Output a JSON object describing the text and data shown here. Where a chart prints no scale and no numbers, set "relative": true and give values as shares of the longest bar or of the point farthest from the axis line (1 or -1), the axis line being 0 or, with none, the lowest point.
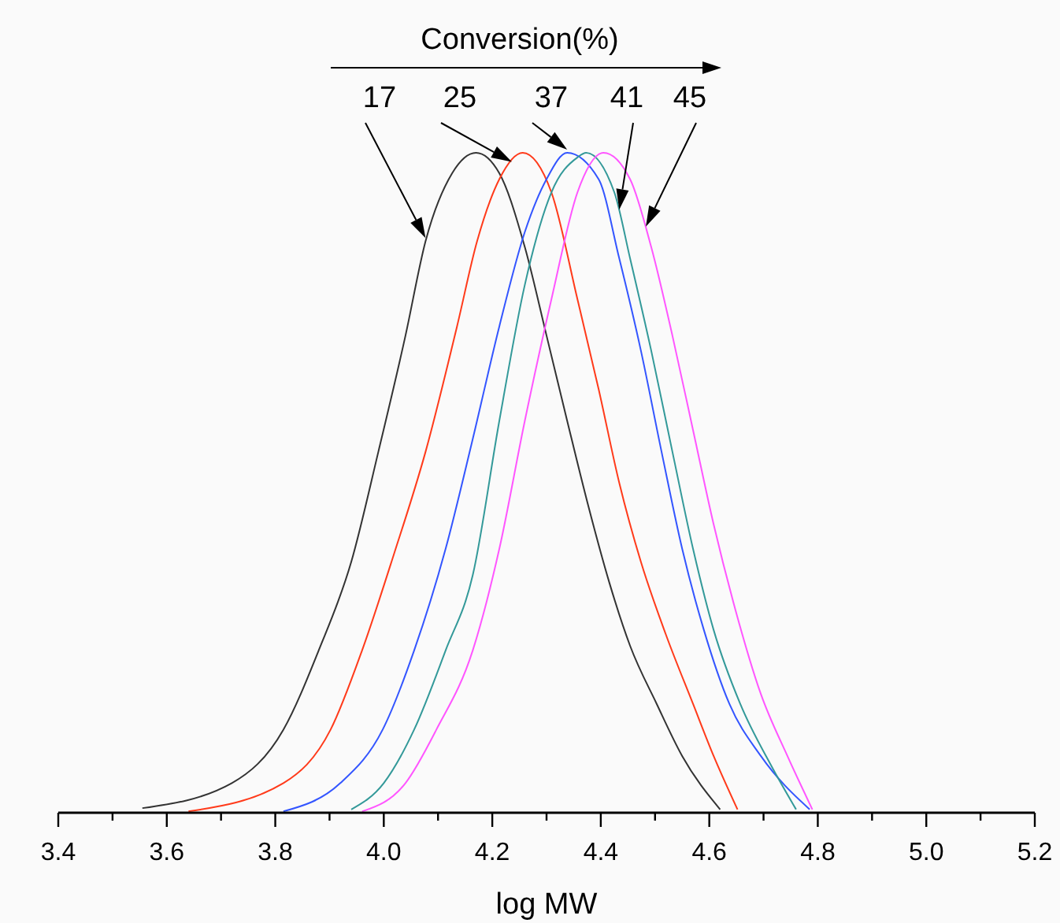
{
  "chart_data": {
    "type": "line",
    "relative": true,
    "legend_title": "Conversion(%)",
    "xlabel": "log MW",
    "grid": false,
    "line_style": "solid",
    "xlim": [
      3.4,
      5.2
    ],
    "xticks": [
      3.4,
      {
        "value": 3.5,
        "label": null
      },
      3.6,
      {
        "value": 3.7,
        "label": null
      },
      3.8,
      {
        "value": 3.9,
        "label": null
      },
      "4.0",
      {
        "value": 4.1,
        "label": null
      },
      4.2,
      {
        "value": 4.3,
        "label": null
      },
      4.4,
      {
        "value": 4.5,
        "label": null
      },
      4.6,
      {
        "value": 4.7,
        "label": null
      },
      4.8,
      {
        "value": 4.9,
        "label": null
      },
      "5.0",
      {
        "value": 5.1,
        "label": null
      },
      5.2
    ],
    "series": [
      {
        "name": "17",
        "color": "#333333",
        "x": [
          3.555,
          3.72,
          3.815,
          3.88,
          3.94,
          3.99,
          4.04,
          4.077,
          4.126,
          4.17,
          4.213,
          4.26,
          4.3,
          4.338,
          4.376,
          4.416,
          4.454,
          4.503,
          4.55,
          4.62
        ],
        "values": [
          0.007,
          0.045,
          0.126,
          0.246,
          0.38,
          0.547,
          0.723,
          0.866,
          0.969,
          1,
          0.969,
          0.857,
          0.723,
          0.594,
          0.468,
          0.348,
          0.253,
          0.165,
          0.086,
          0.005
        ]
      },
      {
        "name": "25",
        "color": "#ff3a1a",
        "x": [
          3.64,
          3.815,
          3.902,
          3.96,
          4.018,
          4.077,
          4.135,
          4.172,
          4.213,
          4.256,
          4.309,
          4.357,
          4.396,
          4.434,
          4.474,
          4.52,
          4.57,
          4.608,
          4.652
        ],
        "values": [
          0.002,
          0.045,
          0.126,
          0.246,
          0.39,
          0.547,
          0.737,
          0.866,
          0.96,
          1,
          0.94,
          0.778,
          0.642,
          0.5,
          0.38,
          0.27,
          0.165,
          0.086,
          0.005
        ]
      },
      {
        "name": "37",
        "color": "#3355ff",
        "x": [
          3.815,
          3.92,
          3.998,
          4.056,
          4.114,
          4.163,
          4.213,
          4.26,
          4.3,
          4.338,
          4.396,
          4.434,
          4.474,
          4.512,
          4.55,
          4.59,
          4.637,
          4.695,
          4.785
        ],
        "values": [
          0.002,
          0.045,
          0.126,
          0.246,
          0.4,
          0.563,
          0.737,
          0.88,
          0.96,
          1,
          0.96,
          0.84,
          0.7,
          0.547,
          0.4,
          0.277,
          0.165,
          0.086,
          0.005
        ]
      },
      {
        "name": "41",
        "color": "#339999",
        "x": [
          3.94,
          4.0,
          4.056,
          4.114,
          4.164,
          4.213,
          4.26,
          4.309,
          4.357,
          4.373,
          4.425,
          4.454,
          4.493,
          4.532,
          4.57,
          4.608,
          4.657,
          4.715,
          4.76
        ],
        "values": [
          0.005,
          0.045,
          0.126,
          0.246,
          0.36,
          0.594,
          0.8,
          0.94,
          0.993,
          1,
          0.94,
          0.84,
          0.7,
          0.547,
          0.4,
          0.277,
          0.165,
          0.07,
          0.005
        ]
      },
      {
        "name": "45",
        "color": "#ff55ff",
        "x": [
          3.96,
          4.04,
          4.097,
          4.164,
          4.213,
          4.26,
          4.309,
          4.357,
          4.405,
          4.454,
          4.493,
          4.532,
          4.57,
          4.608,
          4.648,
          4.695,
          4.744,
          4.79
        ],
        "values": [
          0.002,
          0.045,
          0.126,
          0.246,
          0.4,
          0.594,
          0.778,
          0.94,
          1,
          0.96,
          0.857,
          0.723,
          0.58,
          0.437,
          0.308,
          0.18,
          0.086,
          0.005
        ]
      }
    ]
  }
}
